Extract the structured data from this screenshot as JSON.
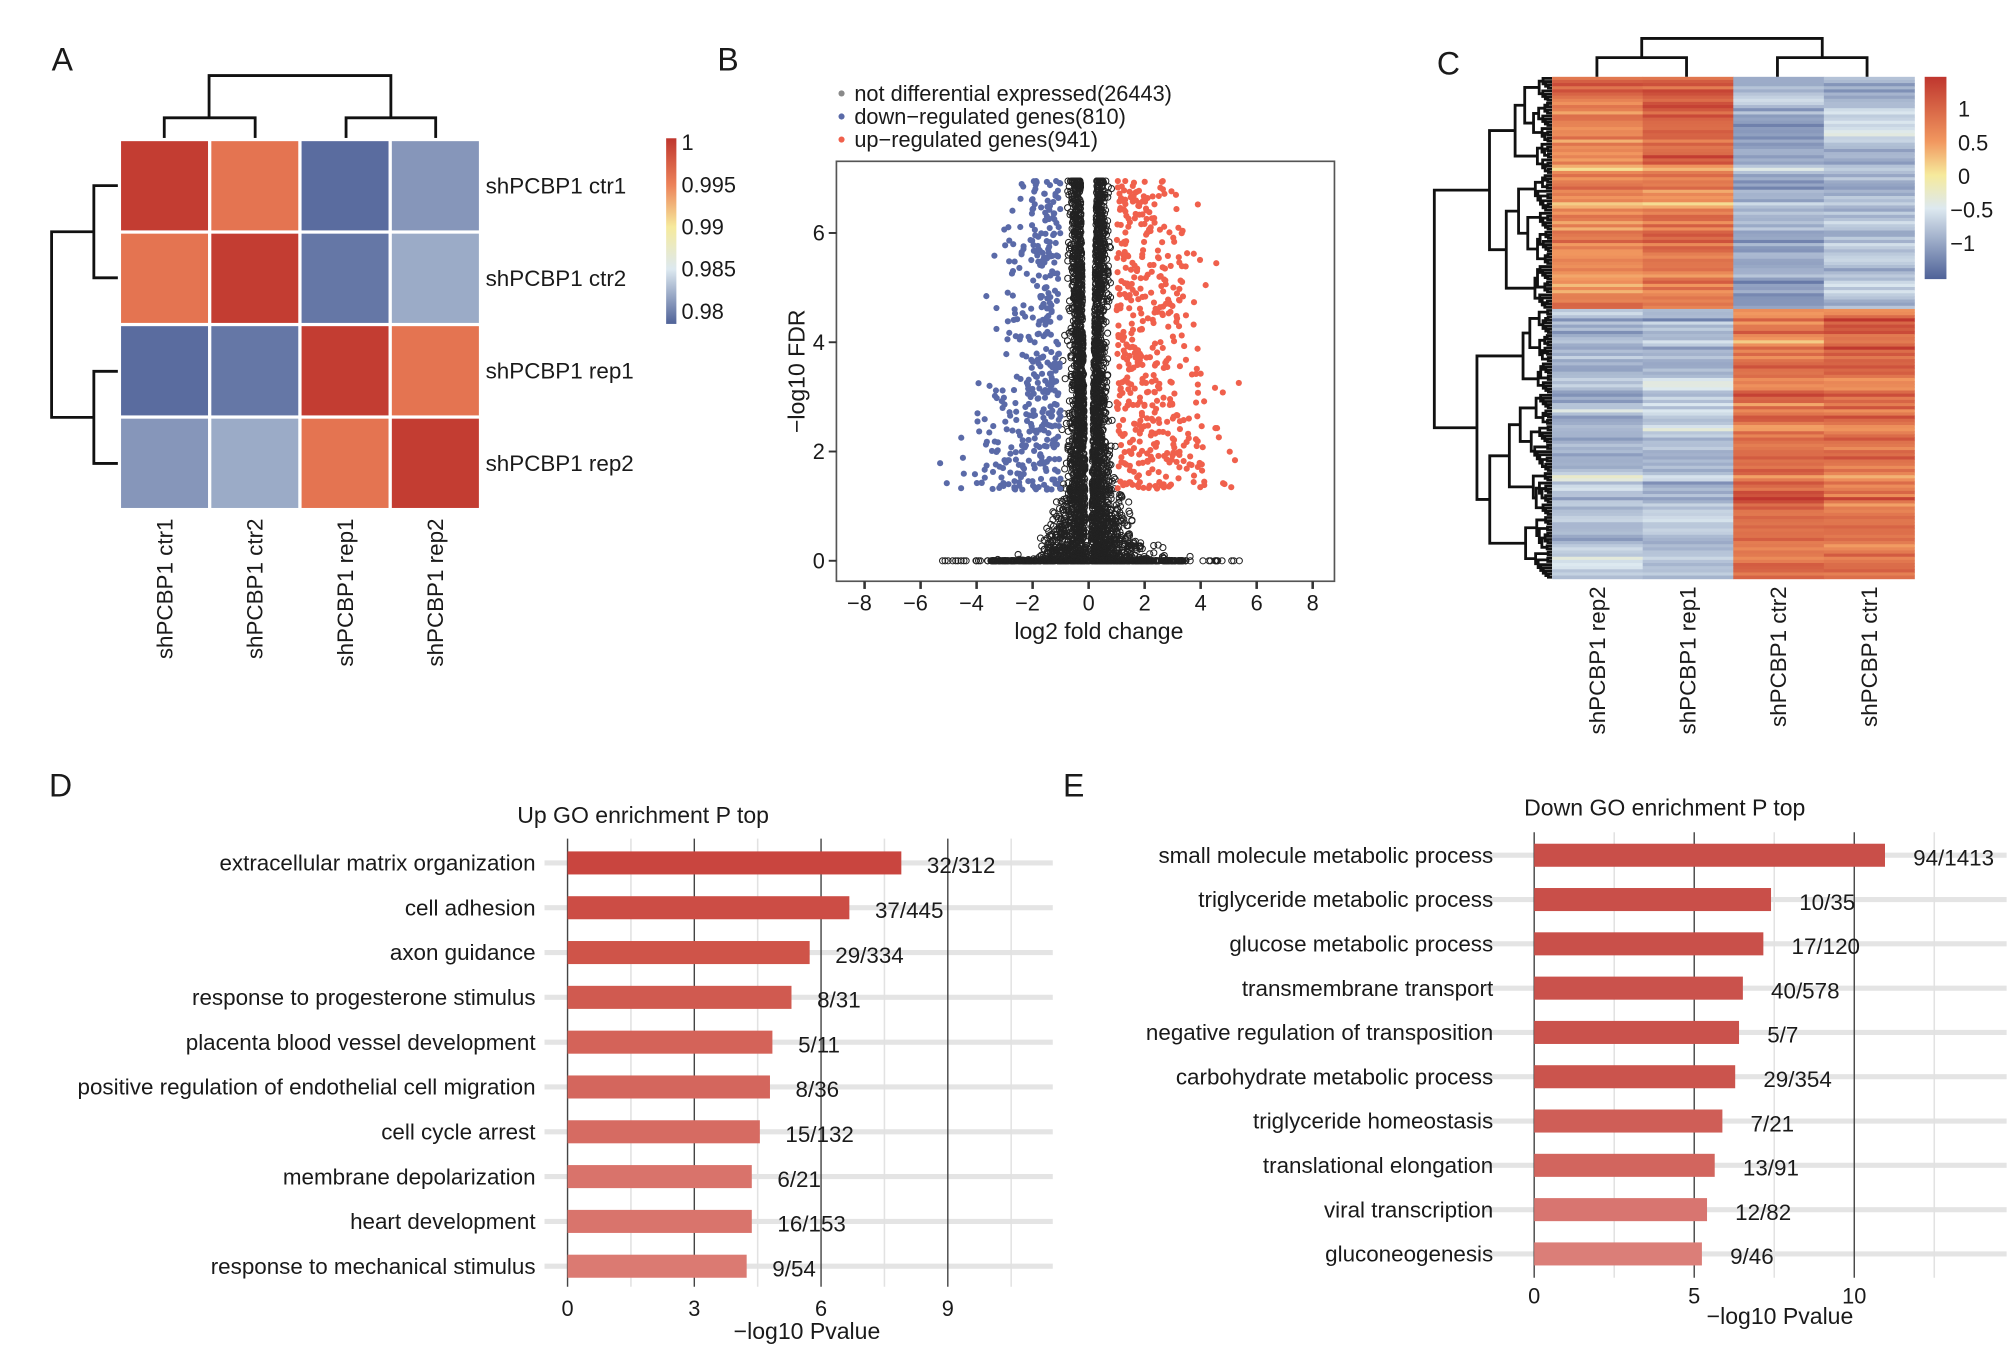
{
  "panel_labels": {
    "A": "A",
    "B": "B",
    "C": "C",
    "D": "D",
    "E": "E"
  },
  "chart_data": [
    {
      "panel": "A",
      "type": "heatmap",
      "rows": [
        "shPCBP1 ctr1",
        "shPCBP1 ctr2",
        "shPCBP1 rep1",
        "shPCBP1 rep2"
      ],
      "columns": [
        "shPCBP1 ctr1",
        "shPCBP1 ctr2",
        "shPCBP1 rep1",
        "shPCBP1 rep2"
      ],
      "values": [
        [
          1.0,
          0.996,
          0.979,
          0.981
        ],
        [
          0.996,
          1.0,
          0.9795,
          0.982
        ],
        [
          0.979,
          0.9795,
          1.0,
          0.996
        ],
        [
          0.981,
          0.982,
          0.996,
          1.0
        ]
      ],
      "colorbar": {
        "ticks": [
          1,
          0.995,
          0.99,
          0.985,
          0.98
        ],
        "tick_labels": [
          "1",
          "0.995",
          "0.99",
          "0.985",
          "0.98"
        ],
        "range": [
          0.9785,
          1.0005
        ],
        "stops": [
          {
            "v": 0.9785,
            "c": "#4f6298"
          },
          {
            "v": 0.985,
            "c": "#dde9f0"
          },
          {
            "v": 0.99,
            "c": "#f6ea9c"
          },
          {
            "v": 0.995,
            "c": "#ec8259"
          },
          {
            "v": 1.0005,
            "c": "#bf362e"
          }
        ]
      },
      "dendrogram": "top and left"
    },
    {
      "panel": "B",
      "type": "scatter",
      "xlabel": "log2 fold change",
      "ylabel": "−log10 FDR",
      "xlim": [
        -9,
        8.8
      ],
      "ylim": [
        -0.37,
        7.3
      ],
      "xticks": [
        -8,
        -6,
        -4,
        -2,
        0,
        2,
        4,
        6,
        8
      ],
      "xtick_labels": [
        "−8",
        "−6",
        "−4",
        "−2",
        "0",
        "2",
        "4",
        "6",
        "8"
      ],
      "yticks": [
        0,
        2,
        4,
        6
      ],
      "ytick_labels": [
        "0",
        "2",
        "4",
        "6"
      ],
      "legend_position": "top",
      "legend": [
        {
          "label": "not differential expressed(26443)",
          "color": "#8a8a8a"
        },
        {
          "label": "down−regulated genes(810)",
          "color": "#5a6aa8"
        },
        {
          "label": "up−regulated genes(941)",
          "color": "#f0604c"
        }
      ],
      "series": [
        {
          "name": "not differential expressed",
          "count": 26443,
          "color": "#111111",
          "marker": "open circle"
        },
        {
          "name": "down−regulated genes",
          "count": 810,
          "color": "#5a6aa8",
          "marker": "filled circle",
          "x_range": [
            -6.5,
            -1
          ],
          "y_range": [
            1.3,
            7
          ]
        },
        {
          "name": "up−regulated genes",
          "count": 941,
          "color": "#f0604c",
          "marker": "filled circle",
          "x_range": [
            1,
            7
          ],
          "y_range": [
            1.3,
            7
          ]
        }
      ]
    },
    {
      "panel": "C",
      "type": "heatmap",
      "columns": [
        "shPCBP1 rep2",
        "shPCBP1 rep1",
        "shPCBP1 ctr2",
        "shPCBP1 ctr1"
      ],
      "clusters": [
        {
          "name": "upper",
          "pattern": [
            0.75,
            0.9,
            -0.95,
            -0.8
          ]
        },
        {
          "name": "lower",
          "pattern": [
            -0.85,
            -0.8,
            0.85,
            0.9
          ]
        }
      ],
      "colorbar": {
        "ticks": [
          1,
          0.5,
          0,
          -0.5,
          -1
        ],
        "tick_labels": [
          "1",
          "0.5",
          "0",
          "−0.5",
          "−1"
        ],
        "range": [
          -1.55,
          1.46
        ],
        "stops": [
          {
            "v": -1.55,
            "c": "#4f6298"
          },
          {
            "v": -0.5,
            "c": "#dde9f0"
          },
          {
            "v": 0,
            "c": "#f6ea9c"
          },
          {
            "v": 0.5,
            "c": "#f1975f"
          },
          {
            "v": 1.46,
            "c": "#bf362e"
          }
        ]
      },
      "dendrogram": "top and left"
    },
    {
      "panel": "D",
      "type": "bar",
      "orientation": "horizontal",
      "title": "Up GO enrichment P top",
      "xlabel": "−log10 Pvalue",
      "xlim": [
        0,
        11.5
      ],
      "xticks": [
        0,
        3,
        6,
        9
      ],
      "xtick_labels": [
        "0",
        "3",
        "6",
        "9"
      ],
      "categories": [
        "extracellular matrix organization",
        "cell adhesion",
        "axon guidance",
        "response to progesterone stimulus",
        "placenta blood vessel development",
        "positive regulation of endothelial cell migration",
        "cell cycle arrest",
        "membrane depolarization",
        "heart development",
        "response to mechanical stimulus"
      ],
      "values": [
        7.9,
        6.67,
        5.73,
        5.3,
        4.85,
        4.79,
        4.55,
        4.36,
        4.36,
        4.24
      ],
      "data_labels": [
        "32/312",
        "37/445",
        "29/334",
        "8/31",
        "5/11",
        "8/36",
        "15/132",
        "6/21",
        "16/153",
        "9/54"
      ],
      "colors": [
        "#c9453f",
        "#cc4d45",
        "#cf5449",
        "#d05a50",
        "#d46359",
        "#d4665d",
        "#d66b62",
        "#d9736b",
        "#d9746c",
        "#db7a72"
      ]
    },
    {
      "panel": "E",
      "type": "bar",
      "orientation": "horizontal",
      "title": "Down GO enrichment P top",
      "xlabel": "−log10 Pvalue",
      "xlim": [
        0,
        14.7
      ],
      "xticks": [
        0,
        5,
        10
      ],
      "xtick_labels": [
        "0",
        "5",
        "10"
      ],
      "categories": [
        "small molecule metabolic process",
        "triglyceride metabolic process",
        "glucose metabolic process",
        "transmembrane transport",
        "negative regulation of transposition",
        "carbohydrate metabolic process",
        "triglyceride homeostasis",
        "translational elongation",
        "viral transcription",
        "gluconeogenesis"
      ],
      "values": [
        10.96,
        7.4,
        7.16,
        6.52,
        6.4,
        6.28,
        5.88,
        5.64,
        5.4,
        5.24
      ],
      "data_labels": [
        "94/1413",
        "10/35",
        "17/120",
        "40/578",
        "5/7",
        "29/354",
        "7/21",
        "13/91",
        "12/82",
        "9/46"
      ],
      "colors": [
        "#c94f49",
        "#c94f49",
        "#c9504a",
        "#ca524c",
        "#ca524c",
        "#cb544d",
        "#cf5e57",
        "#d2655e",
        "#d87570",
        "#db7e78"
      ]
    }
  ]
}
